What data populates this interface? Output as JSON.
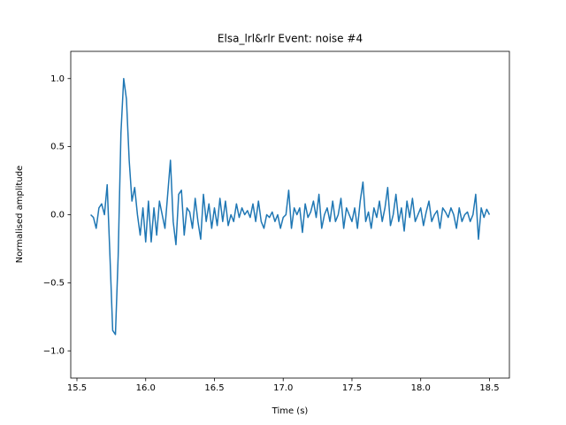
{
  "chart_data": {
    "type": "line",
    "title": "Elsa_lrl&rlr Event: noise #4",
    "x_label": "Time (s)",
    "y_label": "Normalised amplitude",
    "x": [
      15.6,
      15.62,
      15.64,
      15.66,
      15.68,
      15.7,
      15.72,
      15.74,
      15.76,
      15.78,
      15.8,
      15.82,
      15.84,
      15.86,
      15.88,
      15.9,
      15.92,
      15.94,
      15.96,
      15.98,
      16.0,
      16.02,
      16.04,
      16.06,
      16.08,
      16.1,
      16.12,
      16.14,
      16.16,
      16.18,
      16.2,
      16.22,
      16.24,
      16.26,
      16.28,
      16.3,
      16.32,
      16.34,
      16.36,
      16.38,
      16.4,
      16.42,
      16.44,
      16.46,
      16.48,
      16.5,
      16.52,
      16.54,
      16.56,
      16.58,
      16.6,
      16.62,
      16.64,
      16.66,
      16.68,
      16.7,
      16.72,
      16.74,
      16.76,
      16.78,
      16.8,
      16.82,
      16.84,
      16.86,
      16.88,
      16.9,
      16.92,
      16.94,
      16.96,
      16.98,
      17.0,
      17.02,
      17.04,
      17.06,
      17.08,
      17.1,
      17.12,
      17.14,
      17.16,
      17.18,
      17.2,
      17.22,
      17.24,
      17.26,
      17.28,
      17.3,
      17.32,
      17.34,
      17.36,
      17.38,
      17.4,
      17.42,
      17.44,
      17.46,
      17.48,
      17.5,
      17.52,
      17.54,
      17.56,
      17.58,
      17.6,
      17.62,
      17.64,
      17.66,
      17.68,
      17.7,
      17.72,
      17.74,
      17.76,
      17.78,
      17.8,
      17.82,
      17.84,
      17.86,
      17.88,
      17.9,
      17.92,
      17.94,
      17.96,
      17.98,
      18.0,
      18.02,
      18.04,
      18.06,
      18.08,
      18.1,
      18.12,
      18.14,
      18.16,
      18.18,
      18.2,
      18.22,
      18.24,
      18.26,
      18.28,
      18.3,
      18.32,
      18.34,
      18.36,
      18.38,
      18.4,
      18.42,
      18.44,
      18.46,
      18.48,
      18.5
    ],
    "series": [
      {
        "name": "noise #4",
        "color": "#1f77b4",
        "values": [
          0.0,
          -0.02,
          -0.1,
          0.05,
          0.08,
          0.0,
          0.22,
          -0.3,
          -0.85,
          -0.88,
          -0.3,
          0.6,
          1.0,
          0.85,
          0.4,
          0.1,
          0.2,
          0.0,
          -0.15,
          0.05,
          -0.2,
          0.1,
          -0.2,
          0.05,
          -0.15,
          0.1,
          0.0,
          -0.1,
          0.15,
          0.4,
          -0.05,
          -0.22,
          0.15,
          0.18,
          -0.15,
          0.05,
          0.02,
          -0.1,
          0.12,
          -0.05,
          -0.18,
          0.15,
          -0.05,
          0.08,
          -0.1,
          0.05,
          -0.08,
          0.12,
          -0.05,
          0.1,
          -0.08,
          0.0,
          -0.05,
          0.08,
          -0.02,
          0.05,
          0.0,
          0.03,
          -0.02,
          0.08,
          -0.05,
          0.1,
          -0.05,
          -0.1,
          0.0,
          -0.02,
          0.02,
          -0.05,
          0.0,
          -0.1,
          -0.02,
          0.0,
          0.18,
          -0.1,
          0.05,
          0.0,
          0.05,
          -0.13,
          0.08,
          -0.02,
          0.02,
          0.1,
          -0.02,
          0.15,
          -0.1,
          0.0,
          0.05,
          -0.05,
          0.1,
          -0.05,
          0.0,
          0.12,
          -0.1,
          0.05,
          0.0,
          -0.05,
          0.05,
          -0.1,
          0.1,
          0.24,
          -0.05,
          0.02,
          -0.1,
          0.05,
          -0.02,
          0.1,
          -0.05,
          0.05,
          0.2,
          -0.08,
          0.0,
          0.15,
          -0.05,
          0.05,
          -0.12,
          0.1,
          -0.02,
          0.12,
          -0.05,
          0.0,
          0.05,
          -0.08,
          0.02,
          0.1,
          -0.05,
          0.0,
          0.03,
          -0.1,
          0.05,
          0.02,
          -0.02,
          0.05,
          0.0,
          -0.1,
          0.05,
          -0.05,
          0.0,
          0.02,
          -0.05,
          0.0,
          0.15,
          -0.18,
          0.05,
          -0.02,
          0.04,
          0.0
        ]
      }
    ],
    "xlim": [
      15.455,
      18.645
    ],
    "ylim": [
      -1.2,
      1.2
    ],
    "xticks": [
      15.5,
      {
        "value": 16,
        "label": "16.0"
      },
      16.5,
      {
        "value": 17,
        "label": "17.0"
      },
      17.5,
      {
        "value": 18,
        "label": "18.0"
      },
      18.5
    ],
    "yticks": [
      {
        "value": -1,
        "label": "−1.0"
      },
      {
        "value": -0.5,
        "label": "−0.5"
      },
      {
        "value": 0,
        "label": "0.0"
      },
      0.5,
      {
        "value": 1,
        "label": "1.0"
      }
    ],
    "grid": false
  }
}
